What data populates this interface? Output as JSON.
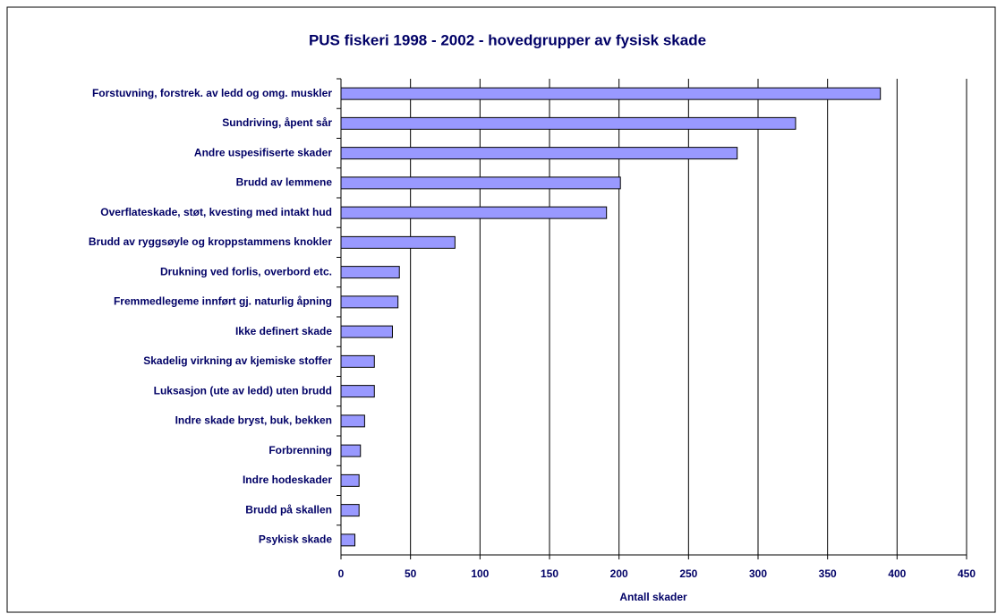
{
  "chart_data": {
    "type": "bar",
    "orientation": "horizontal",
    "title": "PUS fiskeri 1998 - 2002 - hovedgrupper av fysisk skade",
    "x_label": "Antall skader",
    "categories": [
      "Forstuvning, forstrek. av ledd og omg. muskler",
      "Sundriving, åpent sår",
      "Andre uspesifiserte skader",
      "Brudd av lemmene",
      "Overflateskade, støt, kvesting med intakt hud",
      "Brudd av ryggsøyle og kroppstammens knokler",
      "Drukning ved forlis, overbord etc.",
      "Fremmedlegeme innført gj. naturlig åpning",
      "Ikke definert skade",
      "Skadelig virkning av kjemiske stoffer",
      "Luksasjon (ute av ledd) uten brudd",
      "Indre skade bryst, buk, bekken",
      "Forbrenning",
      "Indre hodeskader",
      "Brudd på skallen",
      "Psykisk skade"
    ],
    "values": [
      388,
      327,
      285,
      201,
      191,
      82,
      42,
      41,
      37,
      24,
      24,
      17,
      14,
      13,
      13,
      10
    ],
    "color": "#9999ff",
    "xlim": [
      0,
      450
    ],
    "xticks": [
      0,
      50,
      100,
      150,
      200,
      250,
      300,
      350,
      400,
      450
    ],
    "grid": true
  }
}
